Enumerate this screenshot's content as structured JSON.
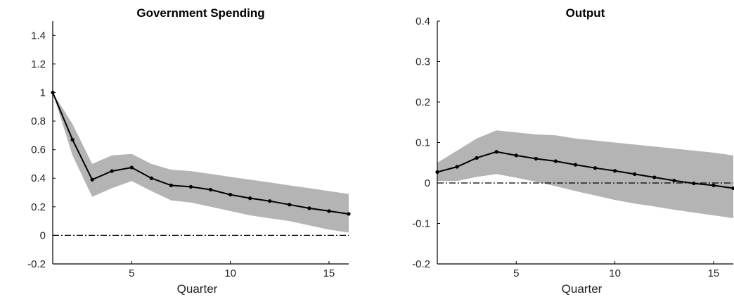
{
  "colors": {
    "band": "#b4b4b4",
    "line": "#000000",
    "axis": "#000000",
    "text": "#222222"
  },
  "chart_data": [
    {
      "type": "line",
      "title": "Government Spending",
      "xlabel": "Quarter",
      "ylabel": "",
      "xlim": [
        1,
        16
      ],
      "ylim": [
        -0.2,
        1.5
      ],
      "xticks": [
        5,
        10,
        15
      ],
      "yticks": [
        -0.2,
        0,
        0.2,
        0.4,
        0.6,
        0.8,
        1,
        1.2,
        1.4
      ],
      "grid": false,
      "zero_line": 0,
      "x": [
        1,
        2,
        3,
        4,
        5,
        6,
        7,
        8,
        9,
        10,
        11,
        12,
        13,
        14,
        15,
        16
      ],
      "series": [
        {
          "values": [
            1.0,
            0.67,
            0.39,
            0.45,
            0.475,
            0.4,
            0.35,
            0.34,
            0.32,
            0.285,
            0.26,
            0.24,
            0.215,
            0.19,
            0.17,
            0.15
          ]
        }
      ],
      "band": {
        "upper": [
          1.0,
          0.78,
          0.5,
          0.56,
          0.57,
          0.5,
          0.46,
          0.45,
          0.43,
          0.41,
          0.39,
          0.37,
          0.35,
          0.33,
          0.31,
          0.29
        ],
        "lower": [
          1.0,
          0.56,
          0.27,
          0.33,
          0.38,
          0.31,
          0.245,
          0.23,
          0.2,
          0.17,
          0.14,
          0.12,
          0.1,
          0.07,
          0.04,
          0.02
        ]
      }
    },
    {
      "type": "line",
      "title": "Output",
      "xlabel": "Quarter",
      "ylabel": "",
      "xlim": [
        1,
        16
      ],
      "ylim": [
        -0.2,
        0.4
      ],
      "xticks": [
        5,
        10,
        15
      ],
      "yticks": [
        -0.2,
        -0.1,
        0,
        0.1,
        0.2,
        0.3,
        0.4
      ],
      "grid": false,
      "zero_line": 0,
      "x": [
        1,
        2,
        3,
        4,
        5,
        6,
        7,
        8,
        9,
        10,
        11,
        12,
        13,
        14,
        15,
        16
      ],
      "series": [
        {
          "values": [
            0.027,
            0.04,
            0.062,
            0.077,
            0.068,
            0.06,
            0.054,
            0.045,
            0.037,
            0.03,
            0.022,
            0.014,
            0.006,
            -0.001,
            -0.006,
            -0.013
          ]
        }
      ],
      "band": {
        "upper": [
          0.05,
          0.08,
          0.11,
          0.13,
          0.125,
          0.12,
          0.118,
          0.11,
          0.105,
          0.1,
          0.095,
          0.09,
          0.085,
          0.08,
          0.075,
          0.068
        ],
        "lower": [
          0.005,
          0.005,
          0.015,
          0.022,
          0.013,
          0.003,
          -0.008,
          -0.02,
          -0.031,
          -0.042,
          -0.051,
          -0.058,
          -0.066,
          -0.073,
          -0.08,
          -0.087
        ]
      }
    }
  ]
}
